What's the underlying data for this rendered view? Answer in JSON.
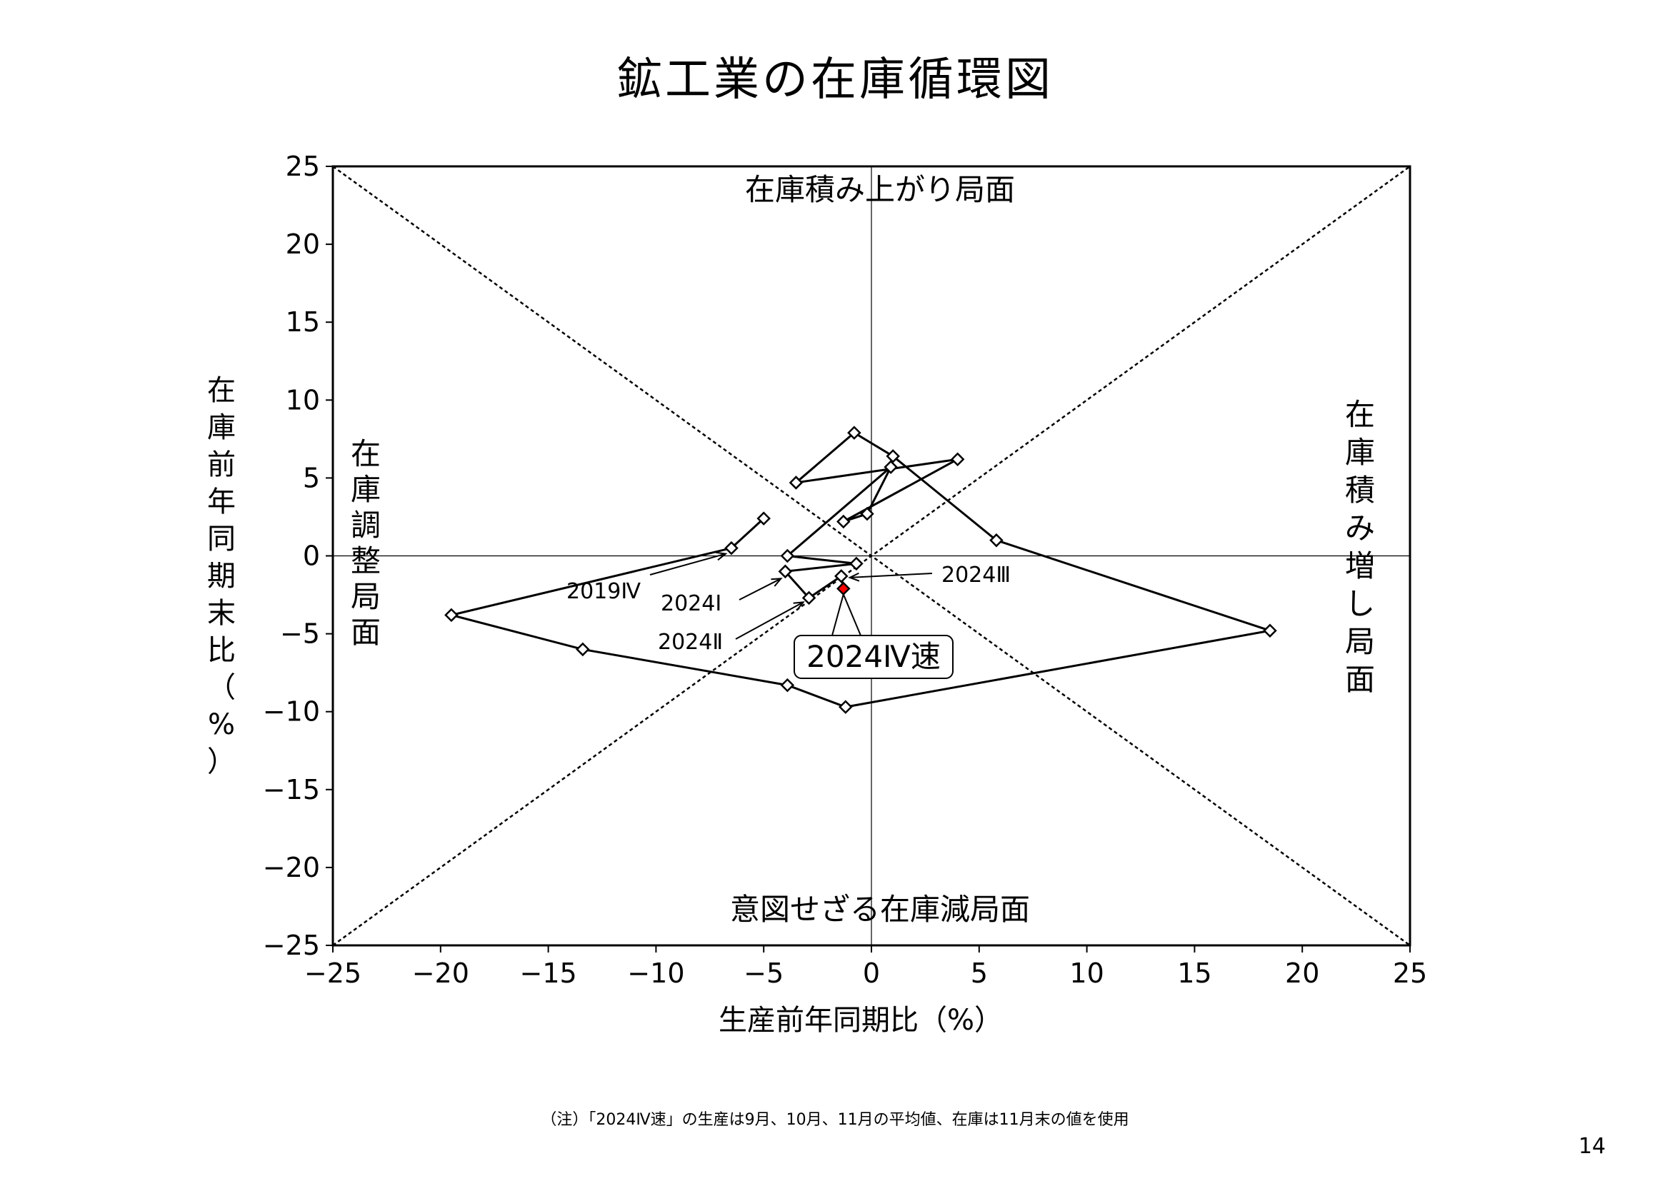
{
  "title": "鉱工業の在庫循環図",
  "footnote": "（注）「2024Ⅳ速」の生産は9月、10月、11月の平均値、在庫は11月末の値を使用",
  "page_number": "14",
  "regions": {
    "top": "在庫積み上がり局面",
    "bottom": "意図せざる在庫減局面",
    "left": "在庫調整局面",
    "right": "在庫積み増し局面"
  },
  "colors": {
    "line": "#000000",
    "marker_fill": "#ffffff",
    "latest_fill": "#ff0000"
  },
  "chart_data": {
    "type": "scatter",
    "xlabel": "生産前年同期比（%）",
    "ylabel": "在庫前年同期末比（%）",
    "xlim": [
      -25,
      25
    ],
    "ylim": [
      -25,
      25
    ],
    "xticks": [
      -25,
      -20,
      -15,
      -10,
      -5,
      0,
      5,
      10,
      15,
      20,
      25
    ],
    "yticks": [
      25,
      20,
      15,
      10,
      5,
      0,
      -5,
      -10,
      -15,
      -20,
      -25
    ],
    "x_tick_labels": [
      "−25",
      "−20",
      "−15",
      "−10",
      "−5",
      "0",
      "5",
      "10",
      "15",
      "20",
      "25"
    ],
    "y_tick_labels": [
      "25",
      "20",
      "15",
      "10",
      "5",
      "0",
      "−5",
      "−10",
      "−15",
      "−20",
      "−25"
    ],
    "grid": false,
    "diagonals": true,
    "x": [
      -5.0,
      -6.5,
      -19.5,
      -13.4,
      -3.9,
      -1.2,
      18.5,
      5.8,
      1.0,
      -0.8,
      -3.5,
      4.0,
      -1.3,
      -0.2,
      0.9,
      -3.9,
      -0.7,
      -4.0,
      -2.9,
      -1.4,
      -1.3
    ],
    "y": [
      2.4,
      0.5,
      -3.8,
      -6.0,
      -8.3,
      -9.7,
      -4.8,
      1.0,
      6.4,
      7.9,
      4.7,
      6.2,
      2.2,
      2.7,
      5.7,
      0.0,
      -0.5,
      -1.0,
      -2.7,
      -1.3,
      -2.1
    ],
    "annotations": [
      {
        "label": "2019Ⅳ",
        "x": -6.5,
        "y": 0.5
      },
      {
        "label": "2024Ⅰ",
        "x": -4.0,
        "y": -1.0
      },
      {
        "label": "2024Ⅱ",
        "x": -2.9,
        "y": -2.7
      },
      {
        "label": "2024Ⅲ",
        "x": -1.4,
        "y": -1.3
      },
      {
        "label": "2024Ⅳ速",
        "x": -1.3,
        "y": -2.1
      }
    ]
  }
}
